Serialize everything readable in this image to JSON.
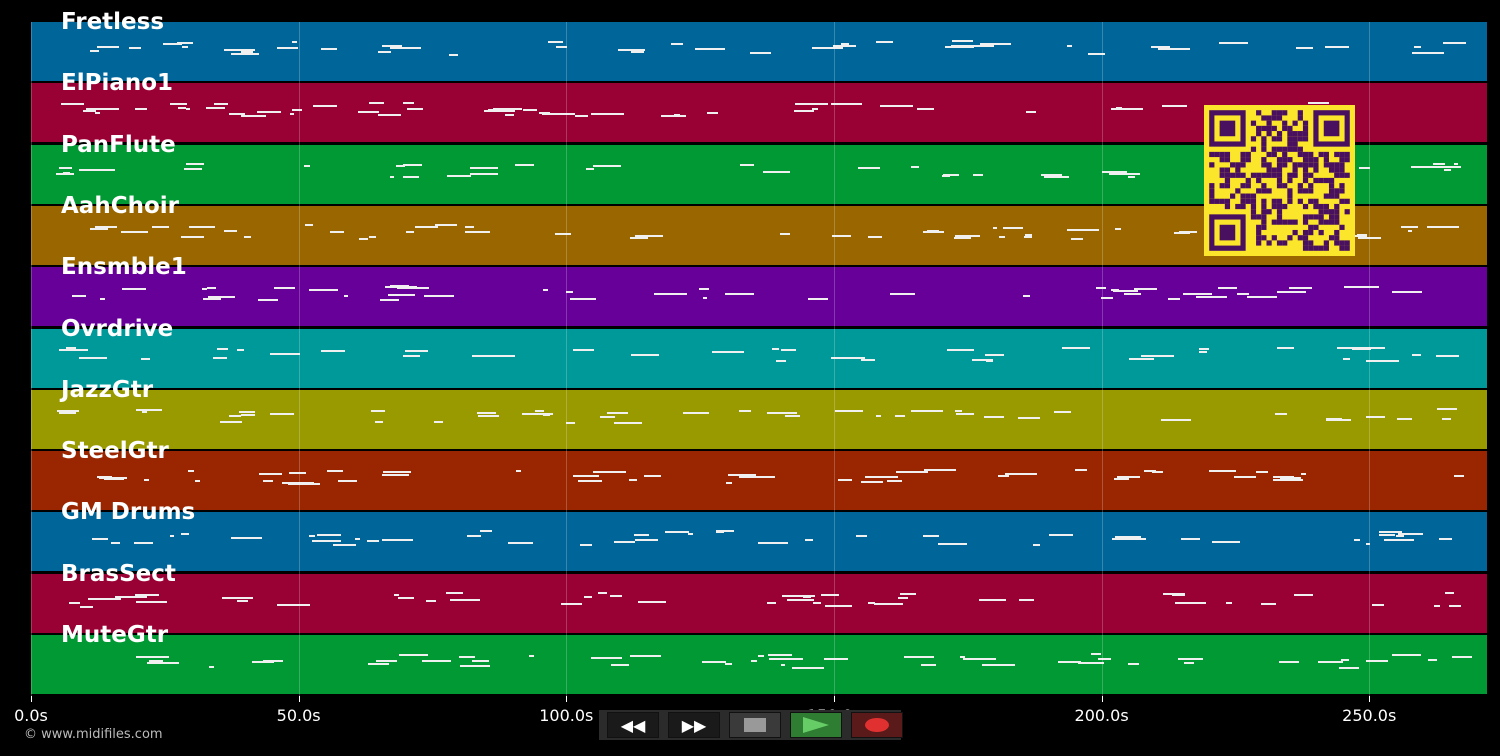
{
  "tracks": [
    {
      "name": "Fretless",
      "color": "#006699"
    },
    {
      "name": "ElPiano1",
      "color": "#990033"
    },
    {
      "name": "PanFlute",
      "color": "#009933"
    },
    {
      "name": "AahChoir",
      "color": "#996600"
    },
    {
      "name": "Ensmble1",
      "color": "#660099"
    },
    {
      "name": "Ovrdrive",
      "color": "#009999"
    },
    {
      "name": "JazzGtr",
      "color": "#999900"
    },
    {
      "name": "SteelGtr",
      "color": "#992600"
    },
    {
      "name": "GM Drums",
      "color": "#006699"
    },
    {
      "name": "BrasSect",
      "color": "#990033"
    },
    {
      "name": "MuteGtr",
      "color": "#009933"
    }
  ],
  "timeline": {
    "ticks": [
      "0.0s",
      "50.0s",
      "100.0s",
      "150.0s",
      "200.0s",
      "250.0s"
    ],
    "tick_seconds": [
      0,
      50,
      100,
      150,
      200,
      250
    ],
    "end_seconds": 272
  },
  "transport": {
    "rewind_label": "◀◀",
    "forward_label": "▶▶",
    "stop_color": "#999999",
    "play_color": "#66cc66",
    "record_color": "#e03030"
  },
  "copyright": "© www.midifiles.com",
  "qr_colors": {
    "bg": "#fbe62b",
    "fg": "#4a1060"
  }
}
